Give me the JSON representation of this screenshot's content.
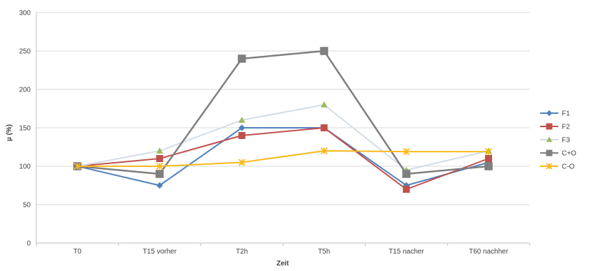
{
  "chart_data": {
    "type": "line",
    "categories": [
      "T0",
      "T15 vorher",
      "T2h",
      "T5h",
      "T15 nacher",
      "T60 nachher"
    ],
    "xlabel": "Zeit",
    "ylabel": "µ (%)",
    "ylim": [
      0,
      300
    ],
    "yticks": [
      0,
      50,
      100,
      150,
      200,
      250,
      300
    ],
    "grid": true,
    "legend_position": "right",
    "series": [
      {
        "name": "F1",
        "color": "#4f81bd",
        "marker": "diamond",
        "values": [
          100,
          75,
          150,
          150,
          75,
          105
        ]
      },
      {
        "name": "F2",
        "color": "#c0504d",
        "marker": "square",
        "values": [
          100,
          110,
          140,
          150,
          70,
          110
        ]
      },
      {
        "name": "F3",
        "color": "#d3dde8",
        "marker": "triangle",
        "marker_color": "#9bbb59",
        "values": [
          100,
          120,
          160,
          180,
          95,
          120
        ]
      },
      {
        "name": "C+O",
        "color": "#7f7f7f",
        "marker": "square",
        "values": [
          100,
          90,
          240,
          250,
          90,
          100
        ]
      },
      {
        "name": "C-O",
        "color": "#f9b81c",
        "marker": "star",
        "values": [
          100,
          100,
          105,
          120,
          119,
          119
        ]
      }
    ]
  }
}
